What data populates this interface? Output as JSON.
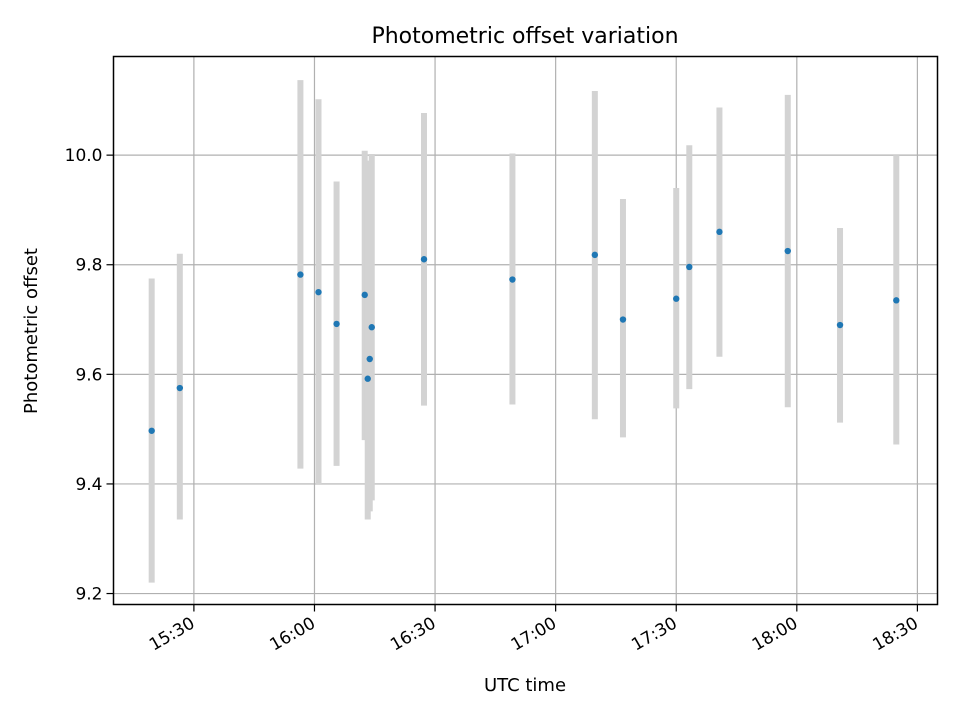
{
  "chart_data": {
    "type": "scatter",
    "title": "Photometric offset variation",
    "xlabel": "UTC time",
    "ylabel": "Photometric offset",
    "x_ticks": [
      "15:30",
      "16:00",
      "16:30",
      "17:00",
      "17:30",
      "18:00",
      "18:30"
    ],
    "y_ticks": [
      "9.2",
      "9.4",
      "9.6",
      "9.8",
      "10.0"
    ],
    "xlim": [
      "15:10",
      "18:35"
    ],
    "ylim": [
      9.18,
      10.18
    ],
    "grid": true,
    "point_color": "#1f77b4",
    "errorbar_color": "#d3d3d3",
    "points": [
      {
        "t": "15:19:30",
        "y": 9.497,
        "lo": 9.22,
        "hi": 9.775
      },
      {
        "t": "15:26:30",
        "y": 9.575,
        "lo": 9.335,
        "hi": 9.82
      },
      {
        "t": "15:56:30",
        "y": 9.782,
        "lo": 9.428,
        "hi": 10.137
      },
      {
        "t": "16:01:00",
        "y": 9.75,
        "lo": 9.4,
        "hi": 10.102
      },
      {
        "t": "16:05:30",
        "y": 9.692,
        "lo": 9.433,
        "hi": 9.952
      },
      {
        "t": "16:12:30",
        "y": 9.745,
        "lo": 9.48,
        "hi": 10.008
      },
      {
        "t": "16:13:15",
        "y": 9.592,
        "lo": 9.335,
        "hi": 9.9
      },
      {
        "t": "16:13:45",
        "y": 9.628,
        "lo": 9.35,
        "hi": 9.99
      },
      {
        "t": "16:14:15",
        "y": 9.686,
        "lo": 9.37,
        "hi": 10.002
      },
      {
        "t": "16:27:15",
        "y": 9.81,
        "lo": 9.543,
        "hi": 10.077
      },
      {
        "t": "16:49:15",
        "y": 9.773,
        "lo": 9.545,
        "hi": 10.003
      },
      {
        "t": "17:09:45",
        "y": 9.818,
        "lo": 9.518,
        "hi": 10.117
      },
      {
        "t": "17:16:45",
        "y": 9.7,
        "lo": 9.485,
        "hi": 9.92
      },
      {
        "t": "17:30:00",
        "y": 9.738,
        "lo": 9.538,
        "hi": 9.94
      },
      {
        "t": "17:33:15",
        "y": 9.796,
        "lo": 9.573,
        "hi": 10.018
      },
      {
        "t": "17:40:45",
        "y": 9.86,
        "lo": 9.632,
        "hi": 10.087
      },
      {
        "t": "17:57:45",
        "y": 9.825,
        "lo": 9.54,
        "hi": 10.11
      },
      {
        "t": "18:10:45",
        "y": 9.69,
        "lo": 9.512,
        "hi": 9.867
      },
      {
        "t": "18:24:45",
        "y": 9.735,
        "lo": 9.472,
        "hi": 10.0
      }
    ]
  }
}
